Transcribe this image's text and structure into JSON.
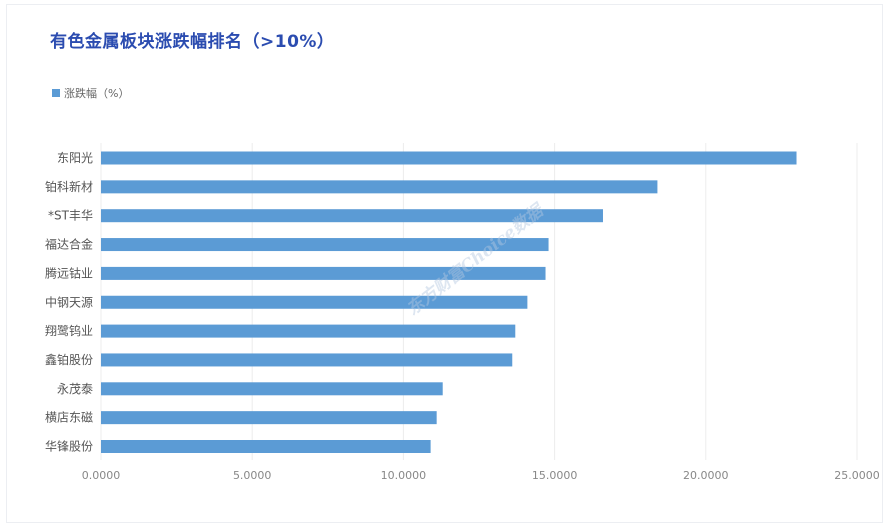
{
  "chart_data": {
    "type": "bar",
    "orientation": "horizontal",
    "title": "有色金属板块涨跌幅排名（>10%）",
    "legend": {
      "position": "top-left",
      "entries": [
        "涨跌幅（%）"
      ]
    },
    "series": [
      {
        "name": "涨跌幅（%）",
        "color": "#5b9bd5",
        "values": [
          23.0,
          18.4,
          16.6,
          14.8,
          14.7,
          14.1,
          13.7,
          13.6,
          11.3,
          11.1,
          10.9
        ]
      }
    ],
    "categories": [
      "东阳光",
      "铂科新材",
      "*ST丰华",
      "福达合金",
      "腾远钴业",
      "中钢天源",
      "翔鹭钨业",
      "鑫铂股份",
      "永茂泰",
      "横店东磁",
      "华锋股份"
    ],
    "xlim": [
      0,
      25
    ],
    "xticks": [
      0,
      5,
      10,
      15,
      20,
      25
    ],
    "xtick_labels": [
      "0.0000",
      "5.0000",
      "10.0000",
      "15.0000",
      "20.0000",
      "25.0000"
    ],
    "grid": {
      "vertical": true
    }
  },
  "watermark": "东方财富Choice数据"
}
